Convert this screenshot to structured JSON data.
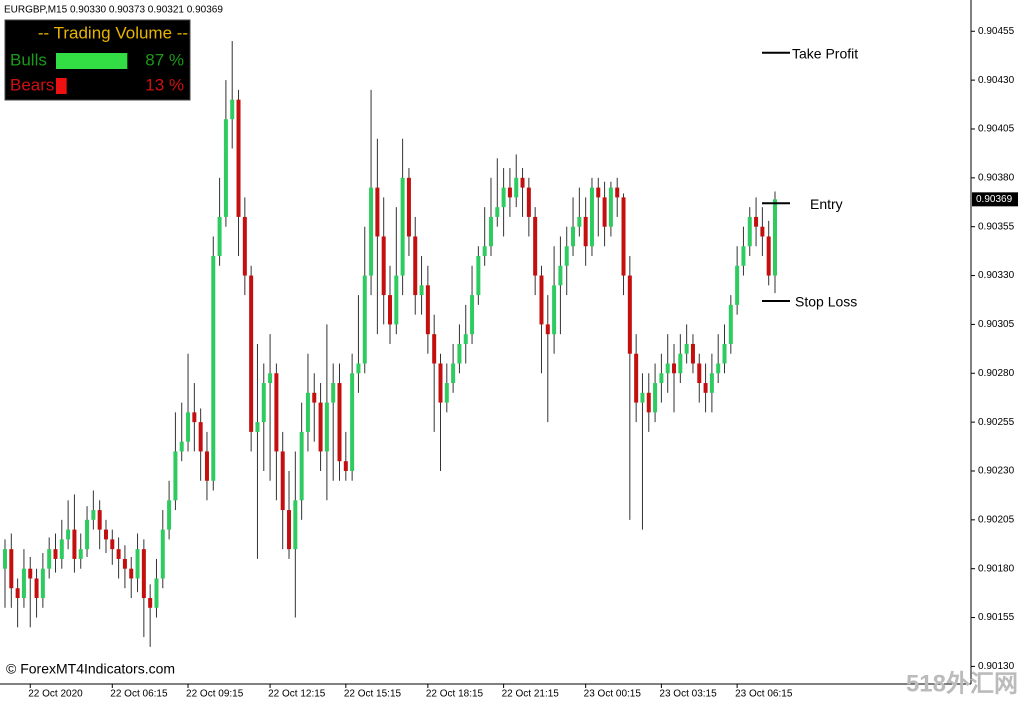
{
  "chart_data": {
    "type": "candlestick",
    "header": "EURGBP,M15  0.90330 0.90373 0.90321 0.90369",
    "watermark": "© ForexMT4Indicators.com",
    "site_logo": "518外汇网",
    "up_color": "#2ecc60",
    "down_color": "#c40f0f",
    "ylim": [
      0.90121,
      0.90471
    ],
    "yticks": [
      0.90455,
      {
        "value": 0.9043,
        "label": "0.90430"
      },
      0.90405,
      {
        "value": 0.9038,
        "label": "0.90380"
      },
      0.90355,
      {
        "value": 0.9033,
        "label": "0.90330"
      },
      0.90305,
      {
        "value": 0.9028,
        "label": "0.90280"
      },
      0.90255,
      {
        "value": 0.9023,
        "label": "0.90230"
      },
      0.90205,
      {
        "value": 0.9018,
        "label": "0.90180"
      },
      0.90155,
      {
        "value": 0.9013,
        "label": "0.90130"
      }
    ],
    "price_marker": {
      "value": 0.90369,
      "label": "0.90369"
    },
    "categories": [
      null,
      null,
      null,
      null,
      "22 Oct 2020",
      null,
      null,
      null,
      null,
      null,
      null,
      null,
      null,
      null,
      null,
      null,
      null,
      "22 Oct 06:15",
      null,
      null,
      null,
      null,
      null,
      null,
      null,
      null,
      null,
      null,
      null,
      "22 Oct 09:15",
      null,
      null,
      null,
      null,
      null,
      null,
      null,
      null,
      null,
      null,
      null,
      null,
      "22 Oct 12:15",
      null,
      null,
      null,
      null,
      null,
      null,
      null,
      null,
      null,
      null,
      null,
      "22 Oct 15:15",
      null,
      null,
      null,
      null,
      null,
      null,
      null,
      null,
      null,
      null,
      null,
      null,
      "22 Oct 18:15",
      null,
      null,
      null,
      null,
      null,
      null,
      null,
      null,
      null,
      null,
      null,
      "22 Oct 21:15",
      null,
      null,
      null,
      null,
      null,
      null,
      null,
      null,
      null,
      null,
      null,
      null,
      "23 Oct 00:15",
      null,
      null,
      null,
      null,
      null,
      null,
      null,
      null,
      null,
      null,
      null,
      "23 Oct 03:15",
      null,
      null,
      null,
      null,
      null,
      null,
      null,
      null,
      null,
      null,
      null,
      "23 Oct 06:15",
      null,
      null,
      null,
      null,
      null,
      null
    ],
    "open": [
      0.9018,
      0.9019,
      0.9017,
      0.90165,
      0.9018,
      0.90175,
      0.90165,
      0.9018,
      0.9019,
      0.90185,
      0.90195,
      0.902,
      0.90185,
      0.9019,
      0.90205,
      0.9021,
      0.902,
      0.90195,
      0.9019,
      0.90185,
      0.9018,
      0.90175,
      0.9019,
      0.90165,
      0.9016,
      0.90175,
      0.902,
      0.90215,
      0.9024,
      0.90245,
      0.9026,
      0.90255,
      0.9024,
      0.90225,
      0.9034,
      0.9036,
      0.9041,
      0.9042,
      0.9036,
      0.9033,
      0.9025,
      0.90255,
      0.90275,
      0.9028,
      0.9024,
      0.9021,
      0.9019,
      0.90215,
      0.9025,
      0.9027,
      0.90265,
      0.9024,
      0.90265,
      0.90275,
      0.90235,
      0.9023,
      0.9028,
      0.90285,
      0.9033,
      0.90375,
      0.9035,
      0.9032,
      0.90305,
      0.9033,
      0.9038,
      0.9035,
      0.9032,
      0.90325,
      0.903,
      0.90285,
      0.90265,
      0.90275,
      0.90285,
      0.90295,
      0.903,
      0.9032,
      0.9034,
      0.90345,
      0.9036,
      0.90365,
      0.90375,
      0.9037,
      0.9038,
      0.90375,
      0.9036,
      0.9033,
      0.90305,
      0.903,
      0.90325,
      0.90335,
      0.90345,
      0.90355,
      0.9036,
      0.90345,
      0.90375,
      0.9037,
      0.90355,
      0.90375,
      0.9037,
      0.9033,
      0.9029,
      0.90265,
      0.9027,
      0.9026,
      0.90275,
      0.9028,
      0.90285,
      0.9028,
      0.9029,
      0.90295,
      0.90285,
      0.90275,
      0.9027,
      0.9028,
      0.90285,
      0.90295,
      0.90315,
      0.90335,
      0.90345,
      0.9036,
      0.90355,
      0.9035,
      0.9033
    ],
    "high": [
      0.90195,
      0.90198,
      0.90175,
      0.9019,
      0.90186,
      0.9018,
      0.90188,
      0.90196,
      0.90198,
      0.90205,
      0.90215,
      0.90218,
      0.90198,
      0.90212,
      0.9022,
      0.90215,
      0.90205,
      0.902,
      0.90196,
      0.90192,
      0.90186,
      0.90198,
      0.90195,
      0.90172,
      0.90185,
      0.9021,
      0.90225,
      0.9026,
      0.90265,
      0.9029,
      0.90275,
      0.90262,
      0.9025,
      0.9035,
      0.9038,
      0.9043,
      0.9045,
      0.90425,
      0.9037,
      0.90335,
      0.90295,
      0.90285,
      0.903,
      0.90285,
      0.9025,
      0.9023,
      0.9024,
      0.90265,
      0.9029,
      0.9028,
      0.90275,
      0.90305,
      0.90285,
      0.90285,
      0.9025,
      0.9029,
      0.9032,
      0.90355,
      0.90425,
      0.904,
      0.9037,
      0.90335,
      0.90365,
      0.904,
      0.90385,
      0.9036,
      0.9034,
      0.90335,
      0.9031,
      0.9029,
      0.90285,
      0.90295,
      0.90305,
      0.90315,
      0.90335,
      0.90345,
      0.90365,
      0.9038,
      0.9039,
      0.90385,
      0.90385,
      0.90392,
      0.90385,
      0.9038,
      0.90365,
      0.90335,
      0.9032,
      0.90345,
      0.9035,
      0.90355,
      0.9037,
      0.90375,
      0.9037,
      0.9038,
      0.9038,
      0.90378,
      0.90378,
      0.9038,
      0.90372,
      0.9034,
      0.903,
      0.9028,
      0.9028,
      0.90285,
      0.9029,
      0.903,
      0.90295,
      0.903,
      0.90305,
      0.903,
      0.9029,
      0.90285,
      0.9029,
      0.903,
      0.90305,
      0.9032,
      0.90345,
      0.90355,
      0.90365,
      0.9037,
      0.90365,
      0.90358,
      0.90373
    ],
    "low": [
      0.9016,
      0.9016,
      0.9015,
      0.9016,
      0.9015,
      0.90155,
      0.9016,
      0.90175,
      0.90178,
      0.9018,
      0.9019,
      0.90178,
      0.9018,
      0.90186,
      0.902,
      0.9019,
      0.90188,
      0.90182,
      0.90175,
      0.9017,
      0.90165,
      0.90168,
      0.90145,
      0.9014,
      0.90155,
      0.9017,
      0.90195,
      0.9021,
      0.90235,
      0.9024,
      0.9024,
      0.90225,
      0.90215,
      0.9022,
      0.90335,
      0.90355,
      0.90395,
      0.9034,
      0.9032,
      0.9024,
      0.90185,
      0.9023,
      0.90225,
      0.90215,
      0.9019,
      0.90185,
      0.90155,
      0.90205,
      0.9024,
      0.90245,
      0.9023,
      0.90215,
      0.90225,
      0.90225,
      0.90225,
      0.90225,
      0.9027,
      0.9028,
      0.9032,
      0.903,
      0.90305,
      0.90295,
      0.903,
      0.9032,
      0.9034,
      0.9031,
      0.9031,
      0.9029,
      0.9025,
      0.9023,
      0.9026,
      0.9027,
      0.9028,
      0.90285,
      0.90295,
      0.90315,
      0.90335,
      0.9034,
      0.90355,
      0.9035,
      0.9036,
      0.90365,
      0.9036,
      0.9035,
      0.9032,
      0.9028,
      0.90255,
      0.9029,
      0.903,
      0.9032,
      0.9034,
      0.9035,
      0.90335,
      0.9034,
      0.9035,
      0.90345,
      0.9035,
      0.9036,
      0.9032,
      0.90205,
      0.90255,
      0.902,
      0.9025,
      0.90255,
      0.90265,
      0.9027,
      0.9026,
      0.90275,
      0.90285,
      0.9028,
      0.90265,
      0.9026,
      0.9026,
      0.90275,
      0.9028,
      0.9029,
      0.9031,
      0.9033,
      0.9034,
      0.90345,
      0.9034,
      0.90325,
      0.90321
    ],
    "close": [
      0.9019,
      0.9017,
      0.90165,
      0.9018,
      0.90175,
      0.90165,
      0.9018,
      0.9019,
      0.90185,
      0.90195,
      0.902,
      0.90185,
      0.9019,
      0.90205,
      0.9021,
      0.902,
      0.90195,
      0.9019,
      0.90185,
      0.9018,
      0.90175,
      0.9019,
      0.90165,
      0.9016,
      0.90175,
      0.902,
      0.90215,
      0.9024,
      0.90245,
      0.9026,
      0.90255,
      0.9024,
      0.90225,
      0.9034,
      0.9036,
      0.9041,
      0.9042,
      0.9036,
      0.9033,
      0.9025,
      0.90255,
      0.90275,
      0.9028,
      0.9024,
      0.9021,
      0.9019,
      0.90215,
      0.9025,
      0.9027,
      0.90265,
      0.9024,
      0.90265,
      0.90275,
      0.90235,
      0.9023,
      0.9028,
      0.90285,
      0.9033,
      0.90375,
      0.9035,
      0.9032,
      0.90305,
      0.9033,
      0.9038,
      0.9035,
      0.9032,
      0.90325,
      0.903,
      0.90285,
      0.90265,
      0.90275,
      0.90285,
      0.90295,
      0.903,
      0.9032,
      0.9034,
      0.90345,
      0.9036,
      0.90365,
      0.90375,
      0.9037,
      0.9038,
      0.90375,
      0.9036,
      0.9033,
      0.90305,
      0.903,
      0.90325,
      0.90335,
      0.90345,
      0.90355,
      0.9036,
      0.90345,
      0.90375,
      0.9037,
      0.90355,
      0.90375,
      0.9037,
      0.9033,
      0.9029,
      0.90265,
      0.9027,
      0.9026,
      0.90275,
      0.9028,
      0.90285,
      0.9028,
      0.9029,
      0.90295,
      0.90285,
      0.90275,
      0.9027,
      0.9028,
      0.90285,
      0.90295,
      0.90315,
      0.90335,
      0.90345,
      0.9036,
      0.90355,
      0.9035,
      0.9033,
      0.90369
    ],
    "levels": [
      {
        "label": "Take Profit",
        "value": 0.90444
      },
      {
        "label": "Entry",
        "value": 0.90367
      },
      {
        "label": "Stop Loss",
        "value": 0.90317
      }
    ],
    "indicator": {
      "title": "-- Trading Volume --",
      "categories": [
        "Bulls",
        "Bears"
      ],
      "values": [
        87,
        13
      ],
      "value_labels": [
        "87 %",
        "13 %"
      ],
      "colors": [
        "#33dd44",
        "#ee1111"
      ],
      "text_colors": [
        "#1a9a1a",
        "#d01010"
      ],
      "title_color": "#e8b400"
    }
  }
}
